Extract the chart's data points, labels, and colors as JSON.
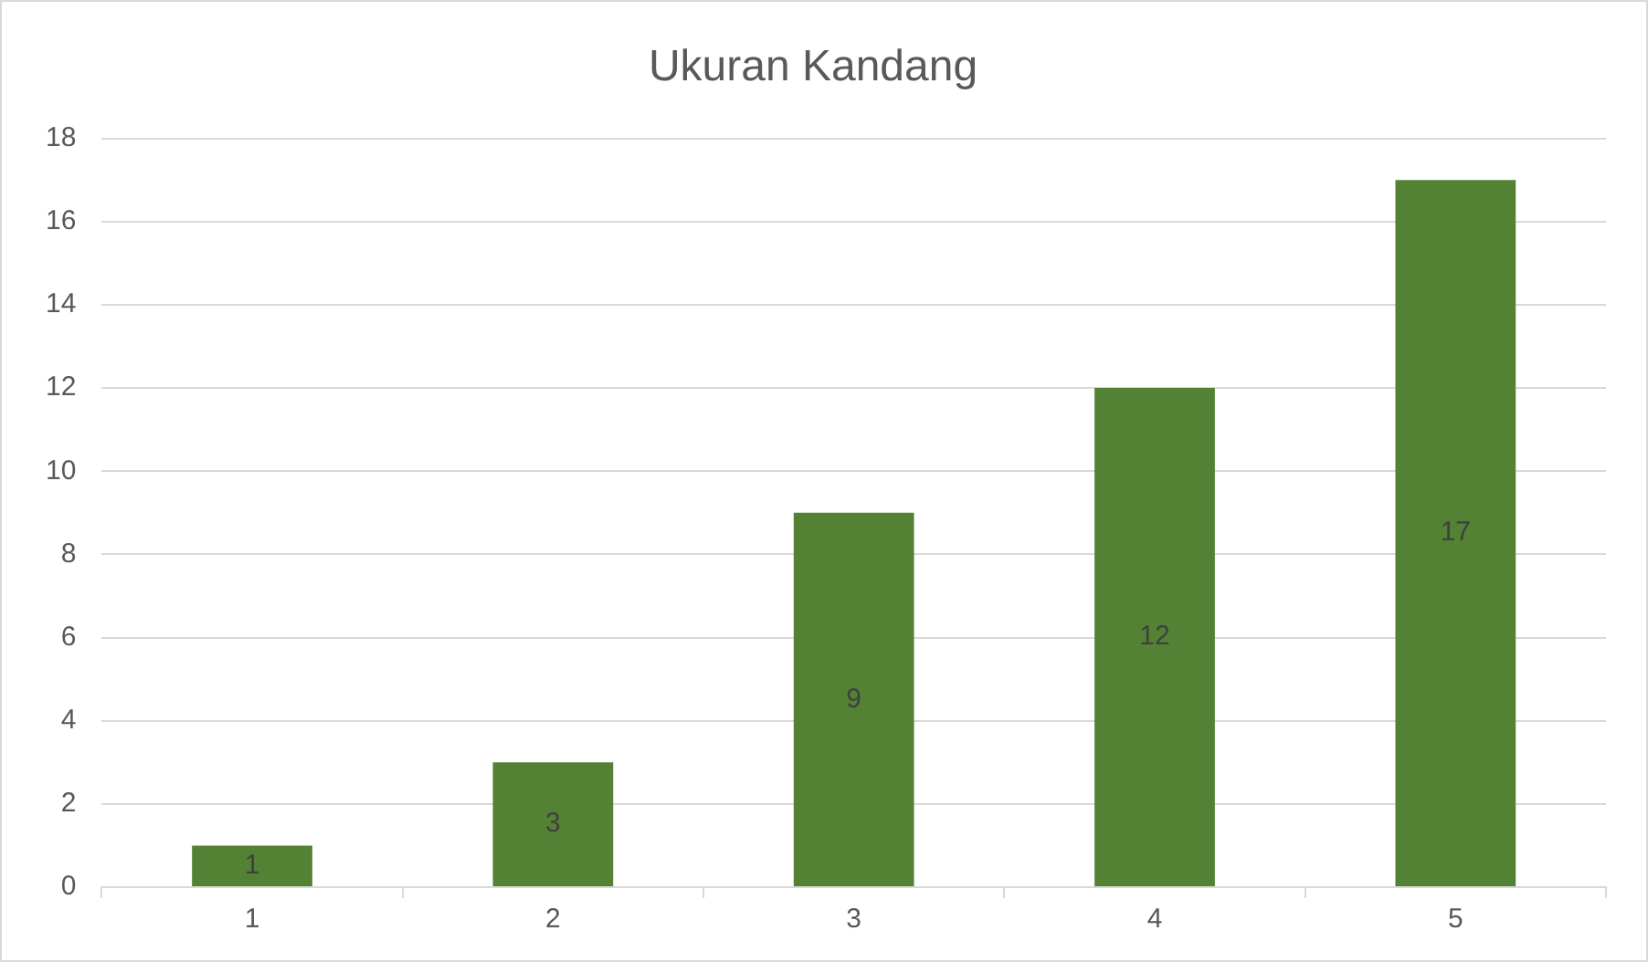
{
  "chart_data": {
    "type": "bar",
    "title": "Ukuran Kandang",
    "categories": [
      "1",
      "2",
      "3",
      "4",
      "5"
    ],
    "values": [
      1,
      3,
      9,
      12,
      17
    ],
    "color": "#548235",
    "ylim": [
      0,
      18
    ],
    "yticks": [
      0,
      2,
      4,
      6,
      8,
      10,
      12,
      14,
      16,
      18
    ],
    "grid": "y",
    "data_labels": true
  }
}
